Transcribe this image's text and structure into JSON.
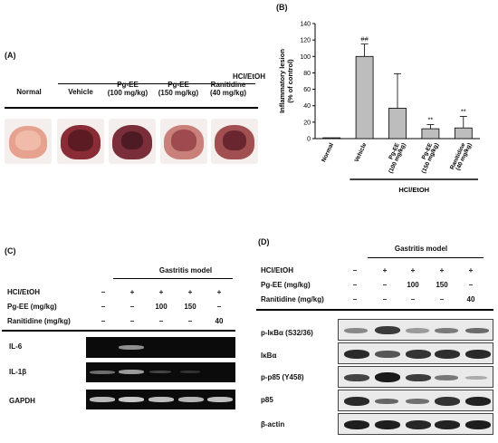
{
  "panelA": {
    "tag": "(A)",
    "group": "HCl/EtOH",
    "columns": [
      "Normal",
      "Vehicle",
      "Pg-EE\n(100 mg/kg)",
      "Pg-EE\n(150 mg/kg)",
      "Ranitidine\n(40 mg/kg)"
    ],
    "col_normal": "Normal",
    "col_vehicle": "Vehicle",
    "col_pg100_a": "Pg-EE",
    "col_pg100_b": "(100 mg/kg)",
    "col_pg150_a": "Pg-EE",
    "col_pg150_b": "(150 mg/kg)",
    "col_ran_a": "Ranitidine",
    "col_ran_b": "(40 mg/kg)"
  },
  "chart_data": {
    "type": "bar",
    "tag": "(B)",
    "ylabel": "Inflammatory lesion\n(% of control)",
    "ylabel_1": "Inflammatory lesion",
    "ylabel_2": "(% of control)",
    "xgroup_label": "HCl/EtOH",
    "categories": [
      "Normal",
      "Vehicle",
      "Pg-EE\n(100 mg/kg)",
      "Pg-EE\n(150 mg/kg)",
      "Ranitidine\n(40 mg/kg)"
    ],
    "cat_lines": [
      [
        "Normal"
      ],
      [
        "Vehicle"
      ],
      [
        "Pg-EE",
        "(100 mg/kg)"
      ],
      [
        "Pg-EE",
        "(150 mg/kg)"
      ],
      [
        "Ranitidine",
        "(40 mg/kg)"
      ]
    ],
    "values": [
      1,
      100,
      37,
      12,
      13
    ],
    "errors": [
      0,
      15,
      42,
      5,
      14
    ],
    "annotations": [
      "",
      "##",
      "",
      "**",
      "**"
    ],
    "ylim": [
      0,
      140
    ],
    "yticks": [
      0,
      20,
      40,
      60,
      80,
      100,
      120,
      140
    ],
    "bar_color": "#bdbdbd"
  },
  "panelC": {
    "tag": "(C)",
    "model": "Gastritis model",
    "row_labels": [
      "HCl/EtOH",
      "Pg-EE (mg/kg)",
      "Ranitidine (mg/kg)"
    ],
    "row_values": [
      [
        "–",
        "+",
        "+",
        "+",
        "+"
      ],
      [
        "–",
        "–",
        "100",
        "150",
        "–"
      ],
      [
        "–",
        "–",
        "–",
        "–",
        "40"
      ]
    ],
    "genes": [
      "IL-6",
      "IL-1β",
      "GAPDH"
    ]
  },
  "panelD": {
    "tag": "(D)",
    "model": "Gastritis model",
    "row_labels": [
      "HCl/EtOH",
      "Pg-EE (mg/kg)",
      "Ranitidine (mg/kg)"
    ],
    "row_values": [
      [
        "–",
        "+",
        "+",
        "+",
        "+"
      ],
      [
        "–",
        "–",
        "100",
        "150",
        "–"
      ],
      [
        "–",
        "–",
        "–",
        "–",
        "40"
      ]
    ],
    "proteins": [
      "p-IκBα (S32/36)",
      "IκBα",
      "p-p85 (Y458)",
      "p85",
      "β-actin"
    ]
  }
}
